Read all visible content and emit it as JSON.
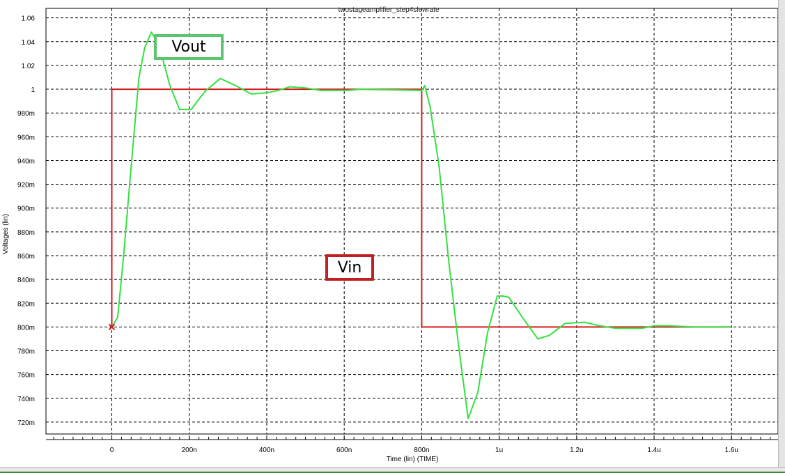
{
  "window": {
    "title": "twostageamplifier_step4slewrate"
  },
  "annotations": {
    "vout_label": "Vout",
    "vin_label": "Vin"
  },
  "colors": {
    "vout": "#33e040",
    "vin": "#d21a1a",
    "vout_box": "#5ec46e",
    "vin_box": "#c02020",
    "grid": "#000000"
  },
  "chart_data": {
    "type": "line",
    "title": "twostageamplifier_step4slewrate",
    "xlabel": "Time (lin) (TIME)",
    "ylabel": "Voltages (lin)",
    "xlim": [
      -1.7e-07,
      1.72e-06
    ],
    "ylim": [
      0.71,
      1.068
    ],
    "grid": true,
    "x_ticks": [
      {
        "value": 0,
        "label": "0"
      },
      {
        "value": 2e-07,
        "label": "200n"
      },
      {
        "value": 4e-07,
        "label": "400n"
      },
      {
        "value": 6e-07,
        "label": "600n"
      },
      {
        "value": 8e-07,
        "label": "800n"
      },
      {
        "value": 1e-06,
        "label": "1u"
      },
      {
        "value": 1.2e-06,
        "label": "1.2u"
      },
      {
        "value": 1.4e-06,
        "label": "1.4u"
      },
      {
        "value": 1.6e-06,
        "label": "1.6u"
      }
    ],
    "y_ticks": [
      {
        "value": 1.06,
        "label": "1.06"
      },
      {
        "value": 1.04,
        "label": "1.04"
      },
      {
        "value": 1.02,
        "label": "1.02"
      },
      {
        "value": 1.0,
        "label": "1"
      },
      {
        "value": 0.98,
        "label": "980m"
      },
      {
        "value": 0.96,
        "label": "960m"
      },
      {
        "value": 0.94,
        "label": "940m"
      },
      {
        "value": 0.92,
        "label": "920m"
      },
      {
        "value": 0.9,
        "label": "900m"
      },
      {
        "value": 0.88,
        "label": "880m"
      },
      {
        "value": 0.86,
        "label": "860m"
      },
      {
        "value": 0.84,
        "label": "840m"
      },
      {
        "value": 0.82,
        "label": "820m"
      },
      {
        "value": 0.8,
        "label": "800m"
      },
      {
        "value": 0.78,
        "label": "780m"
      },
      {
        "value": 0.76,
        "label": "760m"
      },
      {
        "value": 0.74,
        "label": "740m"
      },
      {
        "value": 0.72,
        "label": "720m"
      }
    ],
    "series": [
      {
        "name": "Vin",
        "color": "#d21a1a",
        "x": [
          0,
          0,
          8e-07,
          8e-07,
          1.6e-06
        ],
        "y": [
          0.8,
          1.0,
          1.0,
          0.8,
          0.8
        ]
      },
      {
        "name": "Vout",
        "color": "#33e040",
        "x": [
          0,
          1.5e-08,
          3e-08,
          5e-08,
          7e-08,
          8.5e-08,
          1.02e-07,
          1.22e-07,
          1.5e-07,
          1.75e-07,
          2.05e-07,
          2.4e-07,
          2.8e-07,
          3.2e-07,
          3.6e-07,
          4e-07,
          4.3e-07,
          4.6e-07,
          5e-07,
          5.4e-07,
          5.8e-07,
          6.1e-07,
          6.4e-07,
          8e-07,
          8.08e-07,
          8.22e-07,
          8.45e-07,
          8.7e-07,
          8.95e-07,
          9.2e-07,
          9.45e-07,
          9.7e-07,
          9.95e-07,
          1.01e-06,
          1.025e-06,
          1.06e-06,
          1.1e-06,
          1.13e-06,
          1.17e-06,
          1.22e-06,
          1.26e-06,
          1.3e-06,
          1.34e-06,
          1.37e-06,
          1.4e-06,
          1.44e-06,
          1.5e-06,
          1.6e-06
        ],
        "y": [
          0.8,
          0.808,
          0.858,
          0.935,
          1.01,
          1.035,
          1.048,
          1.037,
          1.003,
          0.983,
          0.983,
          0.998,
          1.009,
          1.003,
          0.996,
          0.997,
          0.999,
          1.002,
          1.001,
          0.999,
          0.999,
          0.999,
          1.0,
          0.999,
          1.003,
          0.985,
          0.935,
          0.855,
          0.785,
          0.723,
          0.745,
          0.795,
          0.826,
          0.826,
          0.825,
          0.808,
          0.79,
          0.793,
          0.803,
          0.804,
          0.801,
          0.799,
          0.799,
          0.799,
          0.801,
          0.801,
          0.8,
          0.8
        ]
      }
    ]
  }
}
